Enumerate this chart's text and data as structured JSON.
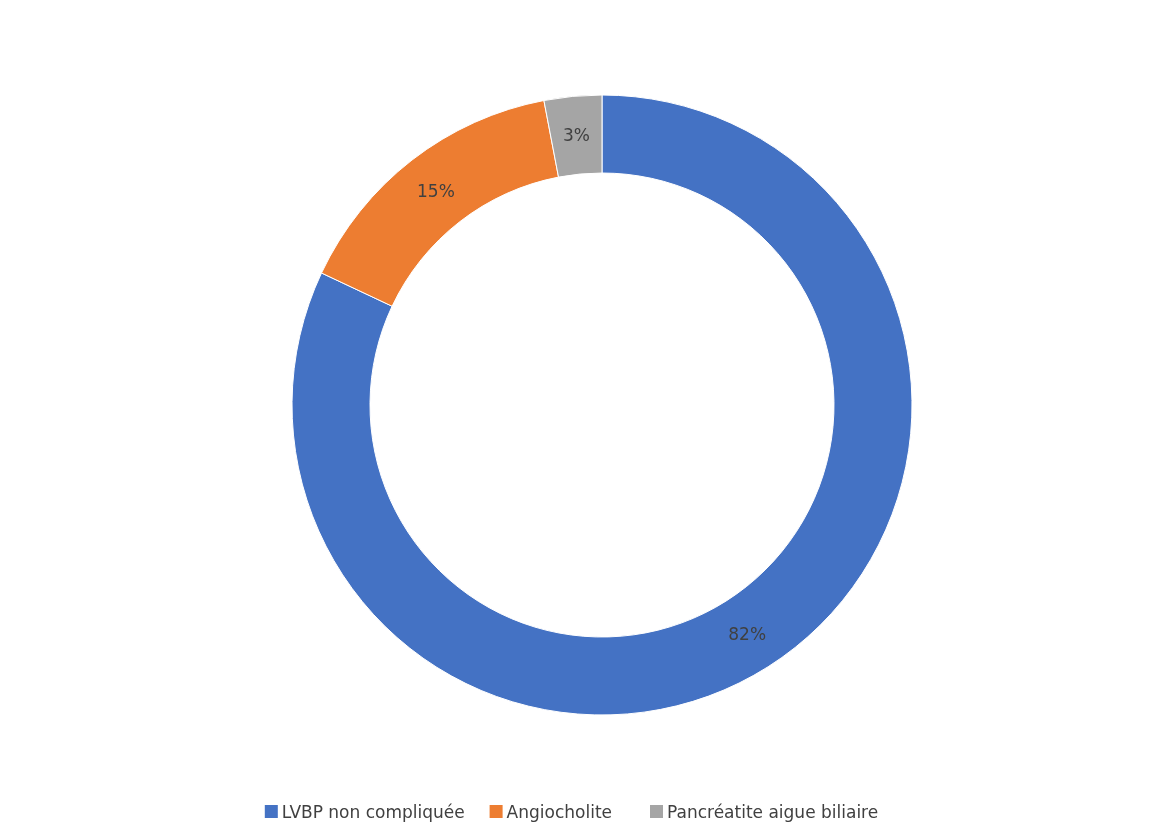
{
  "chart_data": {
    "type": "donut",
    "categories": [
      "LVBP non compliquée",
      "Angiocholite",
      "Pancréatite aigue biliaire"
    ],
    "values": [
      82,
      15,
      3
    ],
    "colors": [
      "#4472c4",
      "#ed7d31",
      "#a5a5a5"
    ],
    "value_labels": [
      "82%",
      "15%",
      "3%"
    ],
    "legend": "bottom"
  }
}
